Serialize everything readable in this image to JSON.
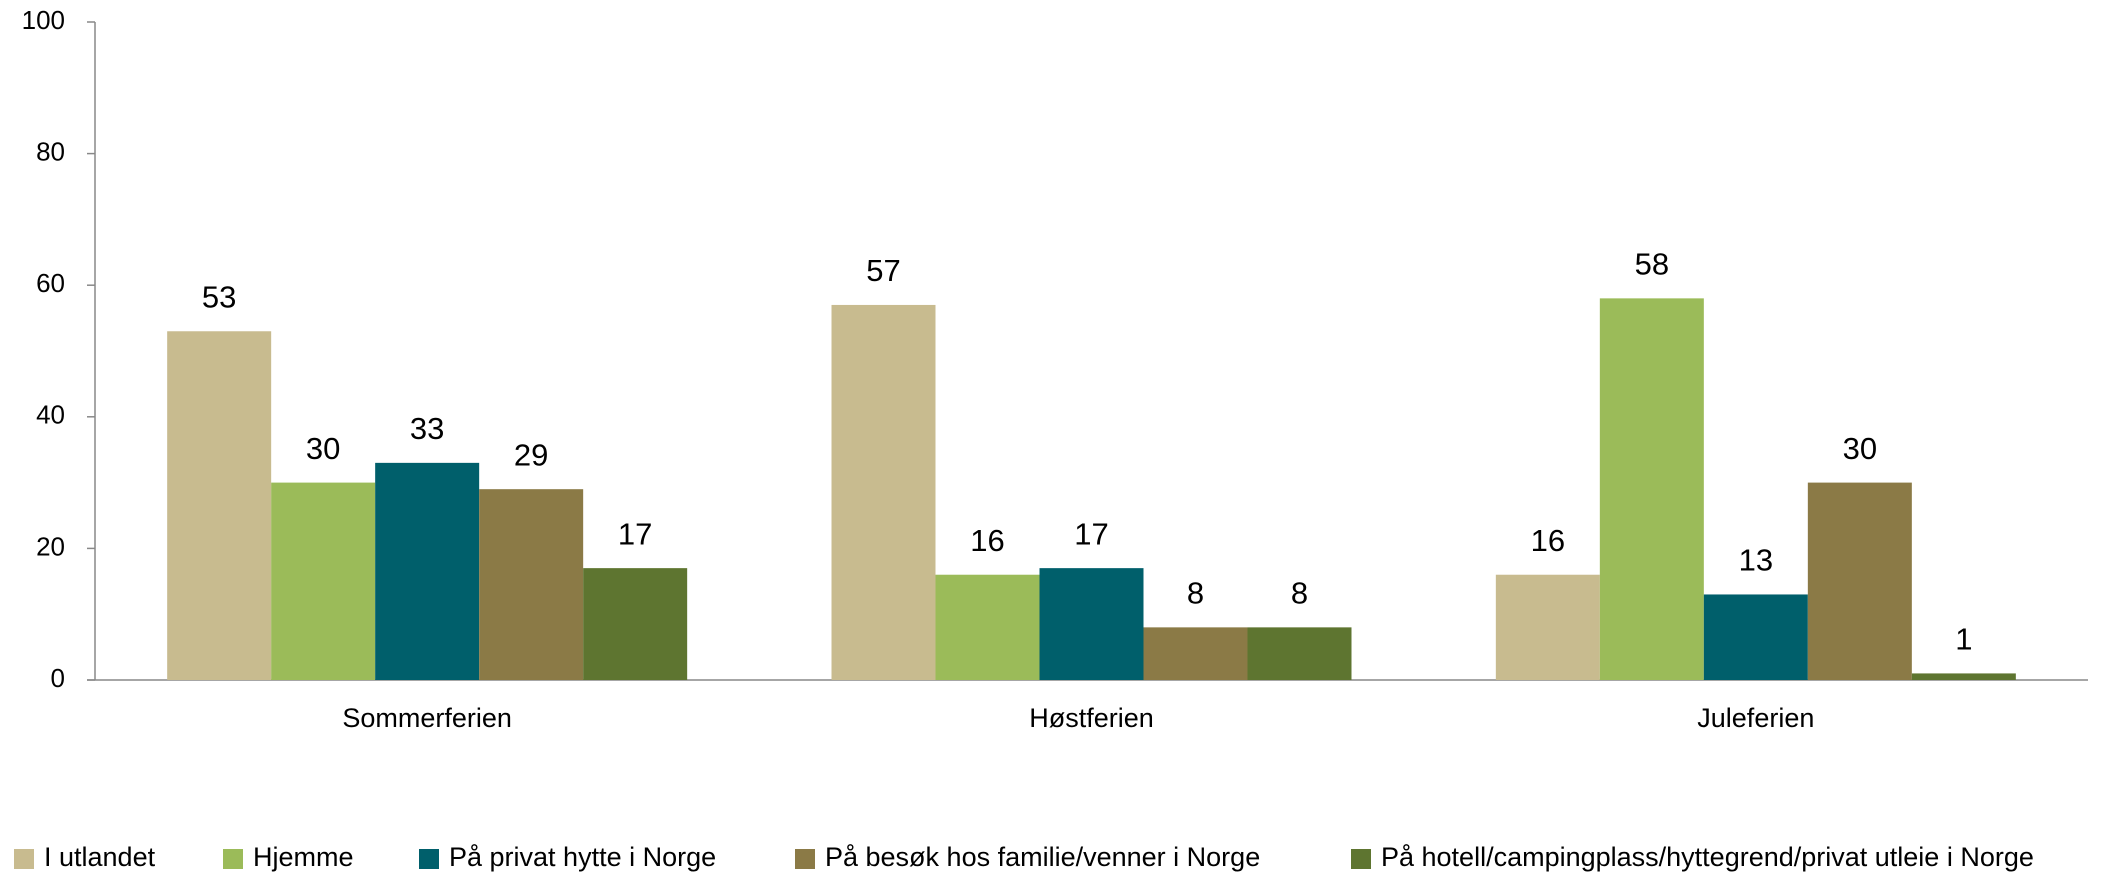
{
  "chart_data": {
    "type": "bar",
    "categories": [
      "Sommerferien",
      "Høstferien",
      "Juleferien"
    ],
    "series": [
      {
        "name": "I utlandet",
        "color": "#c8bb8f",
        "values": [
          53,
          57,
          16
        ]
      },
      {
        "name": "Hjemme",
        "color": "#9bbb59",
        "values": [
          30,
          16,
          58
        ]
      },
      {
        "name": "På privat hytte i Norge",
        "color": "#005f6b",
        "values": [
          33,
          17,
          13
        ]
      },
      {
        "name": "På besøk hos familie/venner i Norge",
        "color": "#8b7a46",
        "values": [
          29,
          8,
          30
        ]
      },
      {
        "name": "På hotell/campingplass/hyttegrend/privat utleie i Norge",
        "color": "#5e7530",
        "values": [
          17,
          8,
          1
        ]
      }
    ],
    "ylim": [
      0,
      100
    ],
    "yticks": [
      0,
      20,
      40,
      60,
      80,
      100
    ],
    "grid": false,
    "legend": "bottom"
  }
}
